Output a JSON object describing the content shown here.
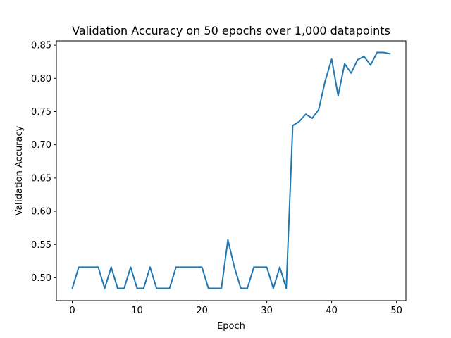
{
  "chart_data": {
    "type": "line",
    "title": "Validation Accuracy on 50 epochs over 1,000 datapoints",
    "xlabel": "Epoch",
    "ylabel": "Validation Accuracy",
    "xlim": [
      -2.45,
      51.45
    ],
    "ylim": [
      0.4655,
      0.8565
    ],
    "xticks": [
      0,
      10,
      20,
      30,
      40,
      50
    ],
    "yticks": [
      0.5,
      0.55,
      0.6,
      0.65,
      0.7,
      0.75,
      0.8,
      0.85
    ],
    "grid": false,
    "line_color": "#1f77b4",
    "series": [
      {
        "x": [
          0,
          1,
          2,
          3,
          4,
          5,
          6,
          7,
          8,
          9,
          10,
          11,
          12,
          13,
          14,
          15,
          16,
          17,
          18,
          19,
          20,
          21,
          22,
          23,
          24,
          25,
          26,
          27,
          28,
          29,
          30,
          31,
          32,
          33,
          34,
          35,
          36,
          37,
          38,
          39,
          40,
          41,
          42,
          43,
          44,
          45,
          46,
          47,
          48,
          49
        ],
        "values": [
          0.484,
          0.516,
          0.516,
          0.516,
          0.516,
          0.484,
          0.516,
          0.484,
          0.484,
          0.516,
          0.484,
          0.484,
          0.516,
          0.484,
          0.484,
          0.484,
          0.516,
          0.516,
          0.516,
          0.516,
          0.516,
          0.484,
          0.484,
          0.484,
          0.557,
          0.516,
          0.484,
          0.484,
          0.516,
          0.516,
          0.516,
          0.484,
          0.516,
          0.484,
          0.729,
          0.735,
          0.746,
          0.74,
          0.753,
          0.796,
          0.829,
          0.774,
          0.822,
          0.808,
          0.828,
          0.833,
          0.82,
          0.839,
          0.839,
          0.837
        ]
      }
    ]
  }
}
